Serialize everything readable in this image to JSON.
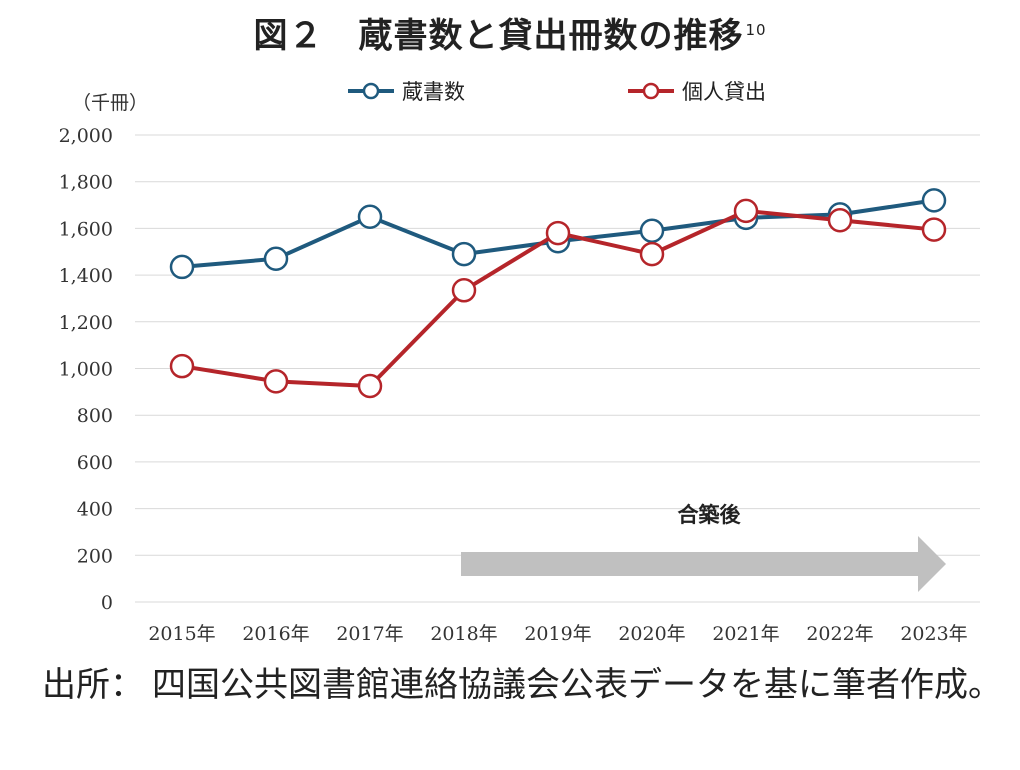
{
  "title": "図２　蔵書数と貸出冊数の推移",
  "title_sup": "10",
  "source_label": "出所：",
  "source_text": "四国公共図書館連絡協議会公表データを基に筆者作成。",
  "chart_data": {
    "type": "line",
    "unit_label": "（千冊）",
    "categories": [
      "2015年",
      "2016年",
      "2017年",
      "2018年",
      "2019年",
      "2020年",
      "2021年",
      "2022年",
      "2023年"
    ],
    "ylim": [
      0,
      2000
    ],
    "yticks": [
      0,
      200,
      400,
      600,
      800,
      1000,
      1200,
      1400,
      1600,
      1800,
      2000
    ],
    "ytick_labels": [
      "0",
      "200",
      "400",
      "600",
      "800",
      "1,000",
      "1,200",
      "1,400",
      "1,600",
      "1,800",
      "2,000"
    ],
    "grid": true,
    "legend_position": "top",
    "series": [
      {
        "name": "蔵書数",
        "color": "#1f5a7e",
        "values": [
          1435,
          1470,
          1650,
          1490,
          1545,
          1590,
          1645,
          1660,
          1720
        ]
      },
      {
        "name": "個人貸出",
        "color": "#b5252a",
        "values": [
          1010,
          945,
          925,
          1335,
          1580,
          1490,
          1675,
          1635,
          1595
        ]
      }
    ],
    "annotation": {
      "label": "合築後",
      "from_category": "2018年",
      "to_category": "2023年",
      "color": "#c0c0c0"
    }
  }
}
